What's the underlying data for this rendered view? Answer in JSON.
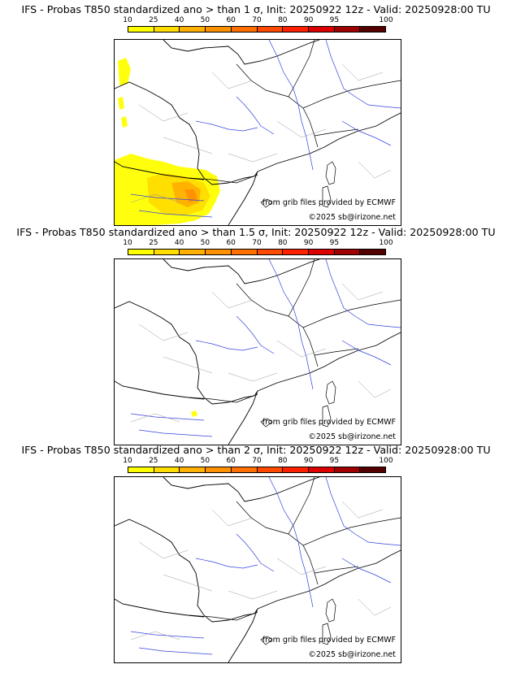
{
  "scale": {
    "labels": [
      "10",
      "25",
      "40",
      "50",
      "60",
      "70",
      "80",
      "90",
      "95",
      "100"
    ],
    "colors": [
      "#ffff00",
      "#ffdd00",
      "#ffb000",
      "#ff9000",
      "#ff7000",
      "#ff4a00",
      "#ff2000",
      "#dd0000",
      "#a00000",
      "#550000"
    ]
  },
  "panels": [
    {
      "title": "IFS - Probas T850  standardized ano > than 1 σ, Init: 20250922 12z - Valid: 20250928:00 TU",
      "credit_source": "from grib files provided by ECMWF",
      "credit_copyright": "©2025 sb@irizone.net",
      "probability_shading": "high-over-iberia"
    },
    {
      "title": "IFS - Probas T850  standardized ano > than 1.5 σ, Init: 20250922 12z - Valid: 20250928:00 TU",
      "credit_source": "from grib files provided by ECMWF",
      "credit_copyright": "©2025 sb@irizone.net",
      "probability_shading": "small-spot-spain"
    },
    {
      "title": "IFS - Probas T850  standardized ano > than 2 σ, Init: 20250922 12z - Valid: 20250928:00 TU",
      "credit_source": "from grib files provided by ECMWF",
      "credit_copyright": "©2025 sb@irizone.net",
      "probability_shading": "none"
    }
  ]
}
